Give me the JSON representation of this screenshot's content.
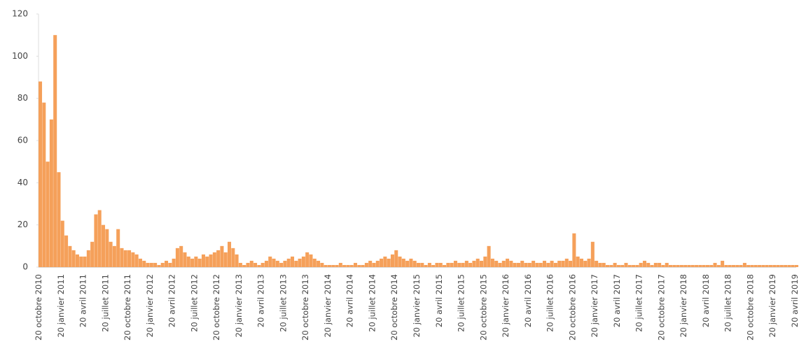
{
  "chart_data": {
    "type": "bar",
    "color": "#f5a05a",
    "ylim": [
      0,
      120
    ],
    "yticks": [
      0,
      20,
      40,
      60,
      80,
      100,
      120
    ],
    "categories": [
      "20 octobre 2010",
      null,
      null,
      null,
      null,
      null,
      "20 janvier 2011",
      null,
      null,
      null,
      null,
      null,
      "20 avril 2011",
      null,
      null,
      null,
      null,
      null,
      "20 juillet 2011",
      null,
      null,
      null,
      null,
      null,
      "20 octobre 2011",
      null,
      null,
      null,
      null,
      null,
      "20 janvier 2012",
      null,
      null,
      null,
      null,
      null,
      "20 avril 2012",
      null,
      null,
      null,
      null,
      null,
      "20 juillet 2012",
      null,
      null,
      null,
      null,
      null,
      "20 octobre 2012",
      null,
      null,
      null,
      null,
      null,
      "20 janvier 2013",
      null,
      null,
      null,
      null,
      null,
      "20 avril 2013",
      null,
      null,
      null,
      null,
      null,
      "20 juillet 2013",
      null,
      null,
      null,
      null,
      null,
      "20 octobre 2013",
      null,
      null,
      null,
      null,
      null,
      "20 janvier 2014",
      null,
      null,
      null,
      null,
      null,
      "20 avril 2014",
      null,
      null,
      null,
      null,
      null,
      "20 juillet 2014",
      null,
      null,
      null,
      null,
      null,
      "20 octobre 2014",
      null,
      null,
      null,
      null,
      null,
      "20 janvier 2015",
      null,
      null,
      null,
      null,
      null,
      "20 avril 2015",
      null,
      null,
      null,
      null,
      null,
      "20 juillet 2015",
      null,
      null,
      null,
      null,
      null,
      "20 octobre 2015",
      null,
      null,
      null,
      null,
      null,
      "20 janvier 2016",
      null,
      null,
      null,
      null,
      null,
      "20 avril 2016",
      null,
      null,
      null,
      null,
      null,
      "20 juillet 2016",
      null,
      null,
      null,
      null,
      null,
      "20 octobre 2016",
      null,
      null,
      null,
      null,
      null,
      "20 janvier 2017",
      null,
      null,
      null,
      null,
      null,
      "20 avril 2017",
      null,
      null,
      null,
      null,
      null,
      "20 juillet 2017",
      null,
      null,
      null,
      null,
      null,
      "20 octobre 2017",
      null,
      null,
      null,
      null,
      null,
      "20 janvier 2018",
      null,
      null,
      null,
      null,
      null,
      "20 avril 2018",
      null,
      null,
      null,
      null,
      null,
      "20 juillet 2018",
      null,
      null,
      null,
      null,
      null,
      "20 octobre 2018",
      null,
      null,
      null,
      null,
      null,
      "20 janvier 2019",
      null,
      null,
      null,
      null,
      null,
      "20 avril 2019"
    ],
    "values": [
      88,
      78,
      50,
      70,
      110,
      45,
      22,
      15,
      10,
      8,
      6,
      5,
      5,
      8,
      12,
      25,
      27,
      20,
      18,
      12,
      10,
      18,
      9,
      8,
      8,
      7,
      6,
      4,
      3,
      2,
      2,
      2,
      1,
      2,
      3,
      2,
      4,
      9,
      10,
      7,
      5,
      4,
      5,
      4,
      6,
      5,
      6,
      7,
      8,
      10,
      7,
      12,
      9,
      6,
      2,
      1,
      2,
      3,
      2,
      1,
      2,
      3,
      5,
      4,
      3,
      2,
      3,
      4,
      5,
      3,
      4,
      5,
      7,
      6,
      4,
      3,
      2,
      1,
      1,
      1,
      1,
      2,
      1,
      1,
      1,
      2,
      1,
      1,
      2,
      3,
      2,
      3,
      4,
      5,
      4,
      6,
      8,
      5,
      4,
      3,
      4,
      3,
      2,
      2,
      1,
      2,
      1,
      2,
      2,
      1,
      2,
      2,
      3,
      2,
      2,
      3,
      2,
      3,
      4,
      3,
      5,
      10,
      4,
      3,
      2,
      3,
      4,
      3,
      2,
      2,
      3,
      2,
      2,
      3,
      2,
      2,
      3,
      2,
      3,
      2,
      3,
      3,
      4,
      3,
      16,
      5,
      4,
      3,
      4,
      12,
      3,
      2,
      2,
      1,
      1,
      2,
      1,
      1,
      2,
      1,
      1,
      1,
      2,
      3,
      2,
      1,
      2,
      2,
      1,
      2,
      1,
      1,
      1,
      1,
      1,
      1,
      1,
      1,
      1,
      1,
      1,
      1,
      2,
      1,
      3,
      1,
      1,
      1,
      1,
      1,
      2,
      1,
      1,
      1,
      1,
      1,
      1,
      1,
      1,
      1,
      1,
      1,
      1,
      1,
      1
    ]
  }
}
